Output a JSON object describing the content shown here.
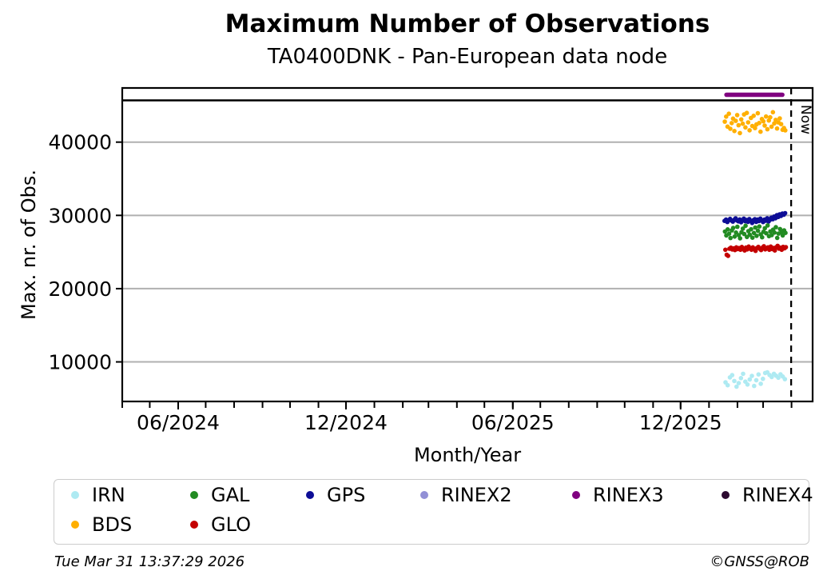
{
  "header": {
    "title": "Maximum Number of Observations",
    "subtitle": "TA0400DNK - Pan-European data node"
  },
  "footer": {
    "timestamp": "Tue Mar 31 13:37:29 2026",
    "credit": "©GNSS@ROB"
  },
  "chart_data": {
    "type": "scatter",
    "title": "Maximum Number of Observations",
    "subtitle": "TA0400DNK - Pan-European data node",
    "xlabel": "Month/Year",
    "ylabel": "Max. nr. of Obs.",
    "x_axis": {
      "min": "2024-04-01",
      "max": "2026-04-24",
      "major_ticks": [
        {
          "date": "2024-06-01",
          "label": "06/2024"
        },
        {
          "date": "2024-12-01",
          "label": "12/2024"
        },
        {
          "date": "2025-06-01",
          "label": "06/2025"
        },
        {
          "date": "2025-12-01",
          "label": "12/2025"
        }
      ],
      "minor_tick_interval": "month"
    },
    "y_axis": {
      "min": 4600,
      "max": 45700,
      "ticks": [
        10000,
        20000,
        30000,
        40000
      ],
      "tick_labels": [
        "10000",
        "20000",
        "30000",
        "40000"
      ],
      "gridlines": true,
      "grid_color": "#b0b0b0"
    },
    "now_line": {
      "datetime": "2026-03-31T13:37:29Z",
      "label": "Now",
      "style": "dashed"
    },
    "rinex_band": {
      "name": "RINEX3",
      "color": "#800080",
      "start": "2026-01-20",
      "end": "2026-03-22"
    },
    "legend": [
      {
        "label": "IRN",
        "color": "#aeeaf2",
        "col": 0,
        "row": 0
      },
      {
        "label": "GAL",
        "color": "#228b22",
        "col": 1,
        "row": 0
      },
      {
        "label": "GPS",
        "color": "#0d0d96",
        "col": 2,
        "row": 0
      },
      {
        "label": "RINEX2",
        "color": "#9290d6",
        "col": 3,
        "row": 0
      },
      {
        "label": "RINEX3",
        "color": "#800080",
        "col": 4,
        "row": 0
      },
      {
        "label": "RINEX4",
        "color": "#2d0a30",
        "col": 5,
        "row": 0
      },
      {
        "label": "BDS",
        "color": "#ffaf00",
        "col": 0,
        "row": 1
      },
      {
        "label": "GLO",
        "color": "#c40000",
        "col": 1,
        "row": 1
      }
    ],
    "series": [
      {
        "name": "GPS",
        "color": "#0d0d96",
        "start_date": "2026-01-18",
        "points": [
          [
            0,
            29250
          ],
          [
            1.5,
            29420
          ],
          [
            3,
            29100
          ],
          [
            4.5,
            29350
          ],
          [
            6,
            29520
          ],
          [
            7.5,
            29280
          ],
          [
            9,
            29150
          ],
          [
            10.5,
            29400
          ],
          [
            12,
            29600
          ],
          [
            13.5,
            29320
          ],
          [
            15,
            29180
          ],
          [
            16.5,
            29450
          ],
          [
            18,
            29060
          ],
          [
            19.5,
            29300
          ],
          [
            21,
            29550
          ],
          [
            22.5,
            29210
          ],
          [
            24,
            29380
          ],
          [
            25.5,
            29120
          ],
          [
            27,
            29500
          ],
          [
            28.5,
            29260
          ],
          [
            30,
            28960
          ],
          [
            31.5,
            29350
          ],
          [
            33,
            29480
          ],
          [
            34.5,
            29110
          ],
          [
            36,
            29420
          ],
          [
            37.5,
            29230
          ],
          [
            39,
            29560
          ],
          [
            40.5,
            29310
          ],
          [
            42,
            29090
          ],
          [
            43.5,
            29440
          ],
          [
            45,
            29270
          ],
          [
            46.5,
            29610
          ],
          [
            48,
            29160
          ],
          [
            49.5,
            29390
          ],
          [
            51,
            29690
          ],
          [
            52.5,
            29480
          ],
          [
            54,
            29840
          ],
          [
            55.5,
            29610
          ],
          [
            57,
            30040
          ],
          [
            58.5,
            29780
          ],
          [
            60,
            30140
          ],
          [
            61.5,
            29930
          ],
          [
            63,
            30240
          ],
          [
            64.5,
            30090
          ],
          [
            66,
            30310
          ]
        ]
      },
      {
        "name": "GAL",
        "color": "#228b22",
        "start_date": "2026-01-18",
        "points": [
          [
            0.4,
            27800
          ],
          [
            1.9,
            27260
          ],
          [
            3.4,
            28090
          ],
          [
            4.9,
            27500
          ],
          [
            6.4,
            26910
          ],
          [
            7.9,
            27950
          ],
          [
            9.4,
            28290
          ],
          [
            10.9,
            27110
          ],
          [
            12.4,
            27650
          ],
          [
            13.9,
            28440
          ],
          [
            15.4,
            27310
          ],
          [
            16.9,
            26870
          ],
          [
            18.4,
            27700
          ],
          [
            19.9,
            28190
          ],
          [
            21.4,
            27460
          ],
          [
            22.9,
            28580
          ],
          [
            24.4,
            27060
          ],
          [
            25.9,
            27850
          ],
          [
            27.4,
            27350
          ],
          [
            28.9,
            28100
          ],
          [
            30.4,
            26960
          ],
          [
            31.9,
            27600
          ],
          [
            33.4,
            28340
          ],
          [
            34.9,
            27210
          ],
          [
            36.4,
            27900
          ],
          [
            37.9,
            28490
          ],
          [
            39.4,
            27410
          ],
          [
            40.9,
            27010
          ],
          [
            42.4,
            27760
          ],
          [
            43.9,
            28240
          ],
          [
            45.4,
            27560
          ],
          [
            46.9,
            28630
          ],
          [
            48.4,
            27160
          ],
          [
            49.9,
            27810
          ],
          [
            51.4,
            27310
          ],
          [
            52.9,
            28050
          ],
          [
            54.4,
            27660
          ],
          [
            55.9,
            28390
          ],
          [
            57.4,
            26920
          ],
          [
            58.9,
            27510
          ],
          [
            60.4,
            28140
          ],
          [
            61.9,
            27710
          ],
          [
            63.4,
            27260
          ],
          [
            64.9,
            27950
          ],
          [
            66.4,
            27610
          ]
        ]
      },
      {
        "name": "GLO",
        "color": "#c40000",
        "start_date": "2026-01-18",
        "points": [
          [
            0.8,
            25310
          ],
          [
            2.3,
            24620
          ],
          [
            3.8,
            24480
          ],
          [
            5.3,
            25450
          ],
          [
            6.8,
            25590
          ],
          [
            8.3,
            25350
          ],
          [
            9.8,
            25490
          ],
          [
            11.3,
            25260
          ],
          [
            12.8,
            25640
          ],
          [
            14.3,
            25410
          ],
          [
            15.8,
            25540
          ],
          [
            17.3,
            25310
          ],
          [
            18.8,
            25690
          ],
          [
            20.3,
            25450
          ],
          [
            21.8,
            25210
          ],
          [
            23.3,
            25600
          ],
          [
            24.8,
            25360
          ],
          [
            26.3,
            25740
          ],
          [
            27.8,
            25500
          ],
          [
            29.3,
            25310
          ],
          [
            30.8,
            25640
          ],
          [
            32.3,
            25400
          ],
          [
            33.8,
            25160
          ],
          [
            35.3,
            25550
          ],
          [
            36.8,
            25700
          ],
          [
            38.3,
            25450
          ],
          [
            39.8,
            25260
          ],
          [
            41.3,
            25590
          ],
          [
            42.8,
            25790
          ],
          [
            44.3,
            25360
          ],
          [
            45.8,
            25500
          ],
          [
            47.3,
            25640
          ],
          [
            48.8,
            25310
          ],
          [
            50.3,
            25740
          ],
          [
            51.8,
            25410
          ],
          [
            53.3,
            25550
          ],
          [
            54.8,
            25210
          ],
          [
            56.3,
            25650
          ],
          [
            57.8,
            25840
          ],
          [
            59.3,
            25460
          ],
          [
            60.8,
            25590
          ],
          [
            62.3,
            25310
          ],
          [
            63.8,
            25700
          ],
          [
            65.3,
            25510
          ],
          [
            66.8,
            25660
          ]
        ]
      },
      {
        "name": "BDS",
        "color": "#ffaf00",
        "start_date": "2026-01-18",
        "points": [
          [
            0.2,
            42800
          ],
          [
            1.7,
            43480
          ],
          [
            3.2,
            42120
          ],
          [
            4.7,
            43880
          ],
          [
            6.2,
            41820
          ],
          [
            7.7,
            42600
          ],
          [
            9.2,
            43210
          ],
          [
            10.7,
            41520
          ],
          [
            12.2,
            42900
          ],
          [
            13.7,
            43690
          ],
          [
            15.2,
            42310
          ],
          [
            16.7,
            41230
          ],
          [
            18.2,
            43100
          ],
          [
            19.7,
            42510
          ],
          [
            21.2,
            43780
          ],
          [
            22.7,
            42010
          ],
          [
            24.2,
            43990
          ],
          [
            25.7,
            42700
          ],
          [
            27.2,
            41620
          ],
          [
            28.7,
            43300
          ],
          [
            30.2,
            42210
          ],
          [
            31.7,
            43590
          ],
          [
            33.2,
            41910
          ],
          [
            34.7,
            42410
          ],
          [
            36.2,
            43940
          ],
          [
            37.7,
            42610
          ],
          [
            39.2,
            41420
          ],
          [
            40.7,
            43160
          ],
          [
            42.2,
            42840
          ],
          [
            43.7,
            42260
          ],
          [
            45.2,
            43490
          ],
          [
            46.7,
            41760
          ],
          [
            48.2,
            42950
          ],
          [
            49.7,
            43390
          ],
          [
            51.2,
            42110
          ],
          [
            52.7,
            44080
          ],
          [
            54.2,
            42560
          ],
          [
            55.7,
            43040
          ],
          [
            57.2,
            41860
          ],
          [
            58.7,
            42690
          ],
          [
            60.2,
            43240
          ],
          [
            61.7,
            42460
          ],
          [
            63.2,
            41680
          ],
          [
            64.7,
            41930
          ],
          [
            66.2,
            41610
          ]
        ]
      },
      {
        "name": "IRN",
        "color": "#aeeaf2",
        "start_date": "2026-01-18",
        "points": [
          [
            1,
            7210
          ],
          [
            3.4,
            6820
          ],
          [
            5.8,
            7890
          ],
          [
            8.2,
            8190
          ],
          [
            10.6,
            7400
          ],
          [
            13,
            6620
          ],
          [
            15.4,
            7110
          ],
          [
            17.8,
            7790
          ],
          [
            20.2,
            8380
          ],
          [
            22.6,
            7310
          ],
          [
            25,
            6910
          ],
          [
            27.4,
            7600
          ],
          [
            29.8,
            8090
          ],
          [
            32.2,
            6720
          ],
          [
            34.6,
            7500
          ],
          [
            37,
            8290
          ],
          [
            39.4,
            7010
          ],
          [
            41.8,
            7690
          ],
          [
            44.2,
            8490
          ],
          [
            46.6,
            8570
          ],
          [
            49,
            8210
          ],
          [
            51.4,
            7940
          ],
          [
            53.8,
            8380
          ],
          [
            56.2,
            8110
          ],
          [
            58.6,
            7840
          ],
          [
            61,
            8310
          ],
          [
            63.4,
            8010
          ],
          [
            65.8,
            7650
          ]
        ]
      }
    ]
  }
}
